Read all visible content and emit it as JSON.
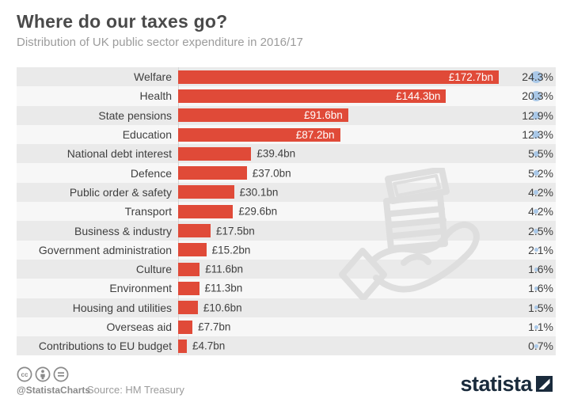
{
  "header": {
    "title": "Where do our taxes go?",
    "subtitle": "Distribution of UK public sector expenditure in 2016/17"
  },
  "chart_data": {
    "type": "bar",
    "orientation": "horizontal",
    "title": "Where do our taxes go?",
    "subtitle": "Distribution of UK public sector expenditure in 2016/17",
    "unit": "£ billion",
    "xlim": [
      0,
      172.7
    ],
    "grid": false,
    "legend": "none",
    "categories": [
      "Welfare",
      "Health",
      "State pensions",
      "Education",
      "National debt interest",
      "Defence",
      "Public order & safety",
      "Transport",
      "Business & industry",
      "Government administration",
      "Culture",
      "Environment",
      "Housing and utilities",
      "Overseas aid",
      "Contributions to EU budget"
    ],
    "values": [
      172.7,
      144.3,
      91.6,
      87.2,
      39.4,
      37.0,
      30.1,
      29.6,
      17.5,
      15.2,
      11.6,
      11.3,
      10.6,
      7.7,
      4.7
    ],
    "value_labels": [
      "£172.7bn",
      "£144.3bn",
      "£91.6bn",
      "£87.2bn",
      "£39.4bn",
      "£37.0bn",
      "£30.1bn",
      "£29.6bn",
      "£17.5bn",
      "£15.2bn",
      "£11.6bn",
      "£11.3bn",
      "£10.6bn",
      "£7.7bn",
      "£4.7bn"
    ],
    "percentages": [
      24.3,
      20.3,
      12.9,
      12.3,
      5.5,
      5.2,
      4.2,
      4.2,
      2.5,
      2.1,
      1.6,
      1.6,
      1.5,
      1.1,
      0.7
    ],
    "percent_labels": [
      "24.3%",
      "20.3%",
      "12.9%",
      "12.3%",
      "5.5%",
      "5.2%",
      "4.2%",
      "4.2%",
      "2.5%",
      "2.1%",
      "1.6%",
      "1.6%",
      "1.5%",
      "1.1%",
      "0.7%"
    ],
    "bar_color": "#e04a38",
    "dot_color": "#a9c8e8"
  },
  "footer": {
    "handle": "@StatistaCharts",
    "source": "Source: HM Treasury",
    "brand": "statista",
    "license": "CC BY-ND"
  }
}
